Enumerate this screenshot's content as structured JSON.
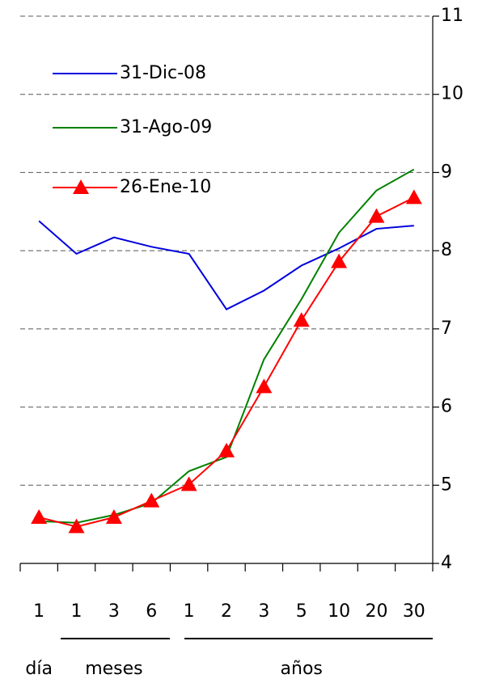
{
  "chart_data": {
    "type": "line",
    "categories": [
      "1",
      "1",
      "3",
      "6",
      "1",
      "2",
      "3",
      "5",
      "10",
      "20",
      "30"
    ],
    "groups": [
      "día",
      "meses",
      "años"
    ],
    "series": [
      {
        "name": "31-Dic-08",
        "color": "#0000dd",
        "marker": "none",
        "values": [
          8.38,
          7.96,
          8.17,
          8.05,
          7.96,
          7.25,
          7.49,
          7.81,
          8.03,
          8.28,
          8.32
        ]
      },
      {
        "name": "31-Ago-09",
        "color": "#008000",
        "marker": "none",
        "values": [
          4.54,
          4.52,
          4.62,
          4.77,
          5.18,
          5.36,
          6.61,
          7.38,
          8.23,
          8.77,
          9.04
        ]
      },
      {
        "name": "26-Ene-10",
        "color": "#ff0000",
        "marker": "triangle",
        "values": [
          4.59,
          4.47,
          4.59,
          4.8,
          5.01,
          5.44,
          6.26,
          7.11,
          7.86,
          8.44,
          8.68
        ]
      }
    ],
    "ylim": [
      4,
      11
    ],
    "yticks": [
      4,
      5,
      6,
      7,
      8,
      9,
      10,
      11
    ],
    "grid": true,
    "legend": "upper left"
  }
}
